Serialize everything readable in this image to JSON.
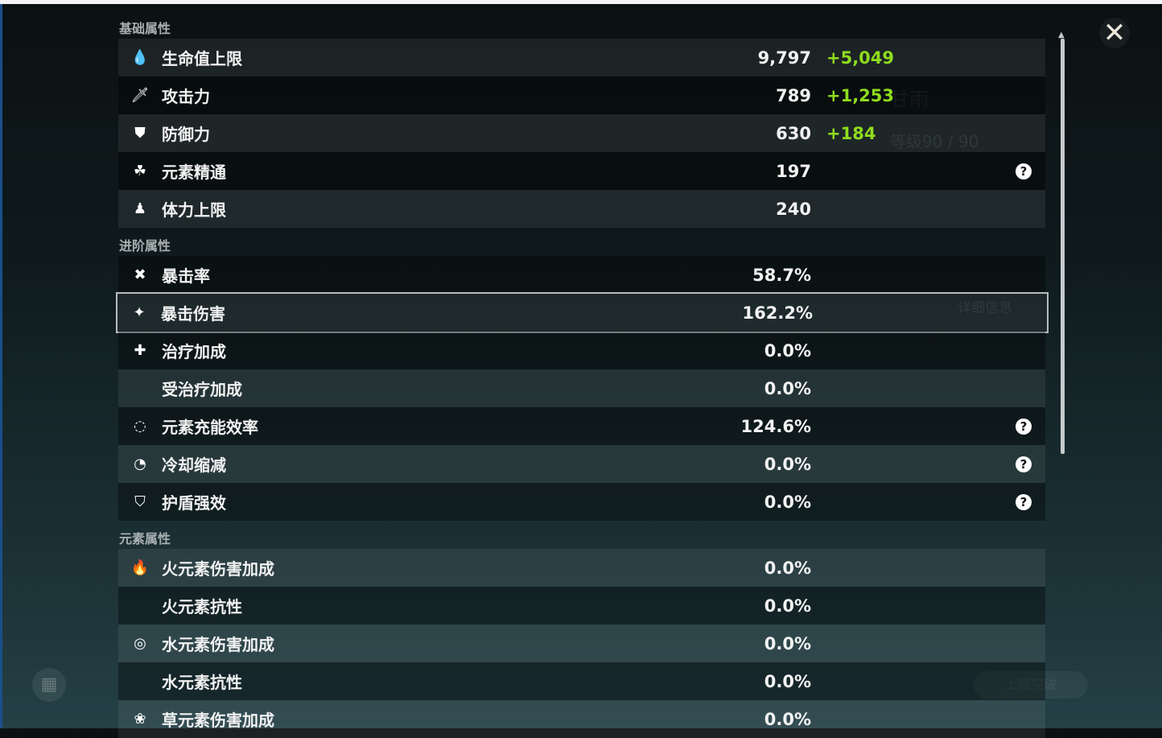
{
  "background": {
    "character_name": "甘雨",
    "level": "等级90 / 90",
    "detail_button": "详细信息",
    "breakthrough_button": "上限突破"
  },
  "close_label": "✕",
  "sections": {
    "basic": {
      "title": "基础属性",
      "rows": [
        {
          "icon": "hp-drop-icon",
          "glyph": "💧",
          "label": "生命值上限",
          "value": "9,797",
          "bonus": "+5,049"
        },
        {
          "icon": "attack-sword-icon",
          "glyph": "🗡",
          "label": "攻击力",
          "value": "789",
          "bonus": "+1,253"
        },
        {
          "icon": "defense-shield-icon",
          "glyph": "⛊",
          "label": "防御力",
          "value": "630",
          "bonus": "+184"
        },
        {
          "icon": "elemental-mastery-icon",
          "glyph": "☘",
          "label": "元素精通",
          "value": "197",
          "help": "?"
        },
        {
          "icon": "stamina-icon",
          "glyph": "♟",
          "label": "体力上限",
          "value": "240"
        }
      ]
    },
    "advanced": {
      "title": "进阶属性",
      "rows": [
        {
          "icon": "crit-rate-icon",
          "glyph": "✖",
          "label": "暴击率",
          "value": "58.7%"
        },
        {
          "icon": "crit-dmg-icon",
          "glyph": "✦",
          "label": "暴击伤害",
          "value": "162.2%"
        },
        {
          "icon": "healing-bonus-icon",
          "glyph": "✚",
          "label": "治疗加成",
          "value": "0.0%"
        },
        {
          "icon": "",
          "glyph": "",
          "label": "受治疗加成",
          "value": "0.0%"
        },
        {
          "icon": "energy-recharge-icon",
          "glyph": "◌",
          "label": "元素充能效率",
          "value": "124.6%",
          "help": "?"
        },
        {
          "icon": "cd-reduction-icon",
          "glyph": "◔",
          "label": "冷却缩减",
          "value": "0.0%",
          "help": "?"
        },
        {
          "icon": "shield-strength-icon",
          "glyph": "⛉",
          "label": "护盾强效",
          "value": "0.0%",
          "help": "?"
        }
      ]
    },
    "elemental": {
      "title": "元素属性",
      "rows": [
        {
          "icon": "pyro-icon",
          "glyph": "🔥",
          "label": "火元素伤害加成",
          "value": "0.0%"
        },
        {
          "icon": "",
          "glyph": "",
          "label": "火元素抗性",
          "value": "0.0%"
        },
        {
          "icon": "hydro-icon",
          "glyph": "◎",
          "label": "水元素伤害加成",
          "value": "0.0%"
        },
        {
          "icon": "",
          "glyph": "",
          "label": "水元素抗性",
          "value": "0.0%"
        },
        {
          "icon": "dendro-icon",
          "glyph": "❀",
          "label": "草元素伤害加成",
          "value": "0.0%"
        }
      ]
    }
  }
}
